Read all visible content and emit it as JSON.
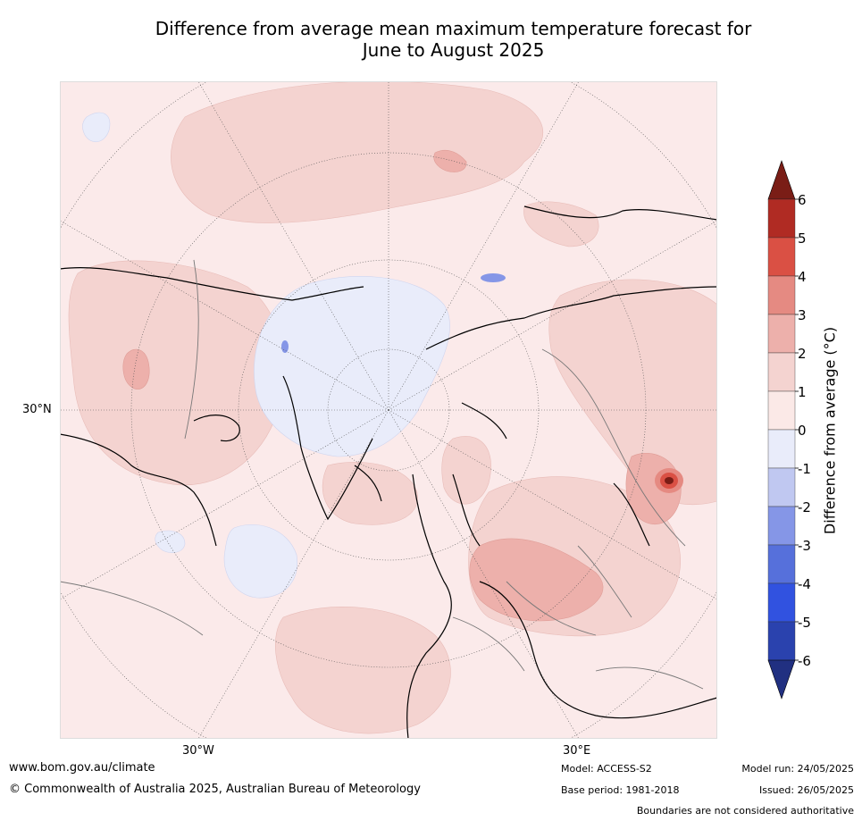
{
  "title": {
    "line1": "Difference from average mean maximum temperature forecast for",
    "line2": "June to August 2025"
  },
  "map": {
    "projection": "north polar stereographic",
    "lat_label": "30°N",
    "lon_labels": [
      "30°W",
      "30°E"
    ],
    "shading_legend": "difference from average (°C)",
    "ocean_fill": "#fbeaea"
  },
  "colorbar": {
    "label": "Difference from average (°C)",
    "tick_labels": [
      "-6",
      "-5",
      "-4",
      "-3",
      "-2",
      "-1",
      "0",
      "1",
      "2",
      "3",
      "4",
      "5",
      "6"
    ],
    "colors": [
      "#213081",
      "#2a42ae",
      "#3152e0",
      "#5670db",
      "#8596e7",
      "#c0c8f1",
      "#e9ecfa",
      "#fbe9e7",
      "#f4d3d0",
      "#edb0ab",
      "#e58a82",
      "#da5044",
      "#b02b23",
      "#7a1d16"
    ]
  },
  "footer": {
    "website": "www.bom.gov.au/climate",
    "copyright": "© Commonwealth of Australia 2025, Australian Bureau of Meteorology",
    "model": "Model: ACCESS-S2",
    "base_period": "Base period: 1981-2018",
    "model_run": "Model run: 24/05/2025",
    "issued": "Issued: 26/05/2025",
    "disclaimer": "Boundaries are not considered authoritative"
  }
}
